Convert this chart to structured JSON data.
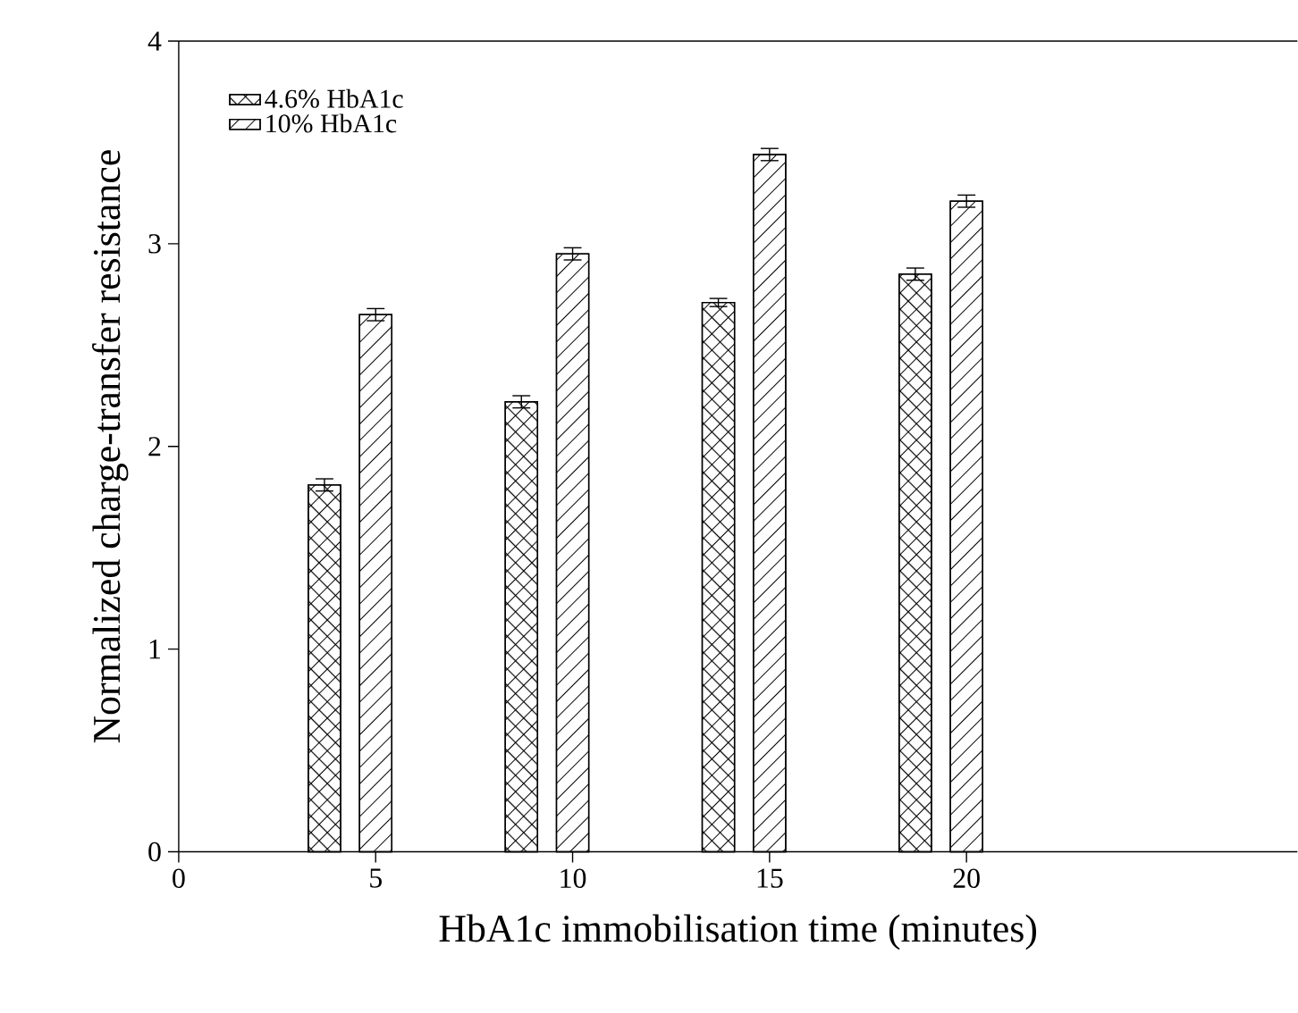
{
  "chart_data": {
    "type": "bar",
    "xlabel": "HbA1c immobilisation time (minutes)",
    "ylabel": "Normalized charge-transfer resistance",
    "xlim": [
      0,
      28.4
    ],
    "xticks": [
      0,
      5,
      10,
      15,
      20
    ],
    "ylim": [
      0,
      4
    ],
    "yticks": [
      0,
      1,
      2,
      3,
      4
    ],
    "legend": "top left",
    "grid": false,
    "series": [
      {
        "name": "4.6% HbA1c",
        "color": "#000000",
        "x": [
          3.7,
          8.7,
          13.7,
          18.7
        ],
        "values": [
          1.81,
          2.22,
          2.71,
          2.85
        ],
        "errors": [
          0.03,
          0.03,
          0.02,
          0.03
        ]
      },
      {
        "name": "10% HbA1c",
        "color": "#000000",
        "x": [
          5,
          10,
          15,
          20
        ],
        "values": [
          2.65,
          2.95,
          3.44,
          3.21
        ],
        "errors": [
          0.03,
          0.03,
          0.03,
          0.03
        ]
      }
    ]
  }
}
